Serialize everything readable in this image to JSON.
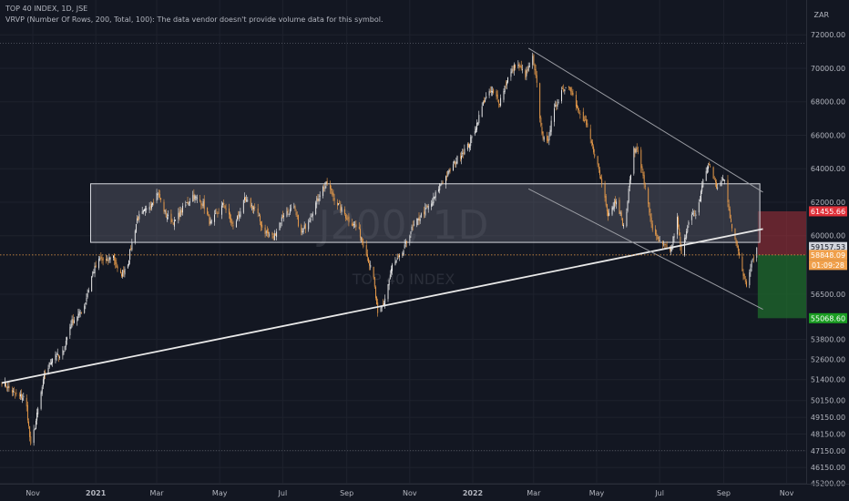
{
  "header": {
    "symbol_line": "TOP 40 INDEX, 1D, JSE",
    "indicator_line": "VRVP (Number Of Rows, 200, Total, 100): The data vendor doesn't provide volume data for this symbol."
  },
  "currency": "ZAR",
  "watermark": {
    "symbol": "J200, 1D",
    "name": "TOP 40 INDEX"
  },
  "colors": {
    "background": "#131722",
    "candle": "#f0a04b",
    "candle_up": "#f0f0f0",
    "trendline": "#e8e8e8",
    "channel": "#9a9ca3",
    "box_fill": "#5a5e6a",
    "stop_zone": "#a8323a",
    "target_zone": "#1f6b2c",
    "last_price": "#f0a04b",
    "stop_label": "#e0313a",
    "target_label": "#1a9d22"
  },
  "chart_data": {
    "type": "candlestick",
    "title": "TOP 40 INDEX, 1D, JSE",
    "y_axis_ticks": [
      72000,
      70000,
      68000,
      66000,
      64000,
      62000,
      60000,
      56500,
      53800,
      52600,
      51400,
      50150,
      49150,
      48150,
      47150,
      46150,
      45200
    ],
    "x_axis_ticks": [
      "Nov",
      "2021",
      "Mar",
      "May",
      "Jul",
      "Sep",
      "Nov",
      "2022",
      "Mar",
      "May",
      "Jul",
      "Sep",
      "Nov"
    ],
    "ylim": [
      44800,
      73700
    ],
    "close_series": {
      "start": "2020-10-02",
      "end": "2022-10-03",
      "anchors": [
        [
          "2020-10-02",
          51300
        ],
        [
          "2020-10-15",
          50500
        ],
        [
          "2020-10-25",
          50300
        ],
        [
          "2020-10-30",
          47400
        ],
        [
          "2020-11-03",
          48600
        ],
        [
          "2020-11-12",
          51600
        ],
        [
          "2020-11-22",
          53000
        ],
        [
          "2020-11-28",
          52600
        ],
        [
          "2020-12-08",
          54800
        ],
        [
          "2020-12-20",
          55600
        ],
        [
          "2020-12-29",
          57800
        ],
        [
          "2021-01-05",
          58600
        ],
        [
          "2021-01-12",
          58400
        ],
        [
          "2021-01-17",
          59000
        ],
        [
          "2021-01-24",
          57500
        ],
        [
          "2021-02-01",
          58400
        ],
        [
          "2021-02-10",
          61000
        ],
        [
          "2021-02-20",
          61600
        ],
        [
          "2021-03-02",
          62600
        ],
        [
          "2021-03-10",
          61200
        ],
        [
          "2021-03-18",
          60800
        ],
        [
          "2021-03-26",
          61600
        ],
        [
          "2021-04-05",
          62400
        ],
        [
          "2021-04-15",
          61900
        ],
        [
          "2021-04-22",
          60700
        ],
        [
          "2021-05-05",
          61900
        ],
        [
          "2021-05-14",
          60500
        ],
        [
          "2021-05-25",
          62100
        ],
        [
          "2021-06-05",
          61600
        ],
        [
          "2021-06-12",
          60300
        ],
        [
          "2021-06-22",
          59900
        ],
        [
          "2021-07-02",
          61300
        ],
        [
          "2021-07-12",
          61600
        ],
        [
          "2021-07-19",
          60100
        ],
        [
          "2021-07-28",
          61200
        ],
        [
          "2021-08-08",
          62800
        ],
        [
          "2021-08-13",
          63100
        ],
        [
          "2021-08-22",
          62000
        ],
        [
          "2021-09-02",
          61000
        ],
        [
          "2021-09-12",
          60400
        ],
        [
          "2021-09-20",
          59000
        ],
        [
          "2021-09-27",
          57400
        ],
        [
          "2021-10-01",
          55200
        ],
        [
          "2021-10-07",
          56000
        ],
        [
          "2021-10-15",
          58200
        ],
        [
          "2021-10-24",
          58800
        ],
        [
          "2021-11-02",
          60300
        ],
        [
          "2021-11-13",
          61300
        ],
        [
          "2021-11-22",
          61900
        ],
        [
          "2021-11-30",
          63000
        ],
        [
          "2021-12-08",
          63700
        ],
        [
          "2021-12-18",
          64700
        ],
        [
          "2021-12-28",
          65400
        ],
        [
          "2022-01-05",
          66700
        ],
        [
          "2022-01-12",
          68100
        ],
        [
          "2022-01-19",
          68600
        ],
        [
          "2022-01-27",
          68000
        ],
        [
          "2022-02-03",
          69300
        ],
        [
          "2022-02-12",
          70300
        ],
        [
          "2022-02-21",
          69600
        ],
        [
          "2022-02-28",
          70600
        ],
        [
          "2022-03-04",
          69000
        ],
        [
          "2022-03-08",
          66500
        ],
        [
          "2022-03-13",
          65200
        ],
        [
          "2022-03-20",
          67300
        ],
        [
          "2022-03-28",
          68700
        ],
        [
          "2022-04-05",
          69000
        ],
        [
          "2022-04-12",
          67500
        ],
        [
          "2022-04-20",
          66700
        ],
        [
          "2022-04-30",
          64700
        ],
        [
          "2022-05-08",
          62600
        ],
        [
          "2022-05-12",
          61300
        ],
        [
          "2022-05-20",
          62200
        ],
        [
          "2022-05-28",
          60300
        ],
        [
          "2022-06-05",
          65000
        ],
        [
          "2022-06-10",
          65200
        ],
        [
          "2022-06-17",
          62800
        ],
        [
          "2022-06-25",
          60100
        ],
        [
          "2022-07-03",
          59400
        ],
        [
          "2022-07-12",
          59200
        ],
        [
          "2022-07-18",
          61000
        ],
        [
          "2022-07-22",
          58800
        ],
        [
          "2022-07-30",
          61300
        ],
        [
          "2022-08-06",
          61100
        ],
        [
          "2022-08-12",
          63400
        ],
        [
          "2022-08-18",
          64300
        ],
        [
          "2022-08-25",
          62900
        ],
        [
          "2022-09-02",
          63400
        ],
        [
          "2022-09-07",
          61000
        ],
        [
          "2022-09-13",
          59700
        ],
        [
          "2022-09-18",
          58000
        ],
        [
          "2022-09-23",
          57100
        ],
        [
          "2022-09-28",
          58500
        ],
        [
          "2022-10-03",
          59300
        ]
      ]
    },
    "drawings": {
      "range_box": {
        "from": "2020-12-27",
        "to": "2022-10-06",
        "low": 59600,
        "high": 63100
      },
      "trendline": {
        "points": [
          [
            "2020-10-02",
            51200
          ],
          [
            "2022-10-09",
            60400
          ]
        ]
      },
      "channel_upper": {
        "points": [
          [
            "2022-02-24",
            71200
          ],
          [
            "2022-10-09",
            62600
          ]
        ]
      },
      "channel_lower": {
        "points": [
          [
            "2022-02-24",
            62800
          ],
          [
            "2022-10-09",
            55600
          ]
        ]
      },
      "long_position": {
        "from": "2022-10-04",
        "to": "2022-10-29",
        "entry": 58848.09,
        "stop": 61455.66,
        "target": 55068.6
      }
    },
    "price_labels": [
      {
        "id": "stop",
        "text": "61455.66",
        "value": 61455.66
      },
      {
        "id": "prev-close",
        "text": "59157.53",
        "value": 59157.53
      },
      {
        "id": "last-price",
        "text": "58848.09",
        "value": 58848.09
      },
      {
        "id": "countdown",
        "text": "01:09:28",
        "value": 58848.09
      },
      {
        "id": "target",
        "text": "55068.60",
        "value": 55068.6
      }
    ]
  }
}
